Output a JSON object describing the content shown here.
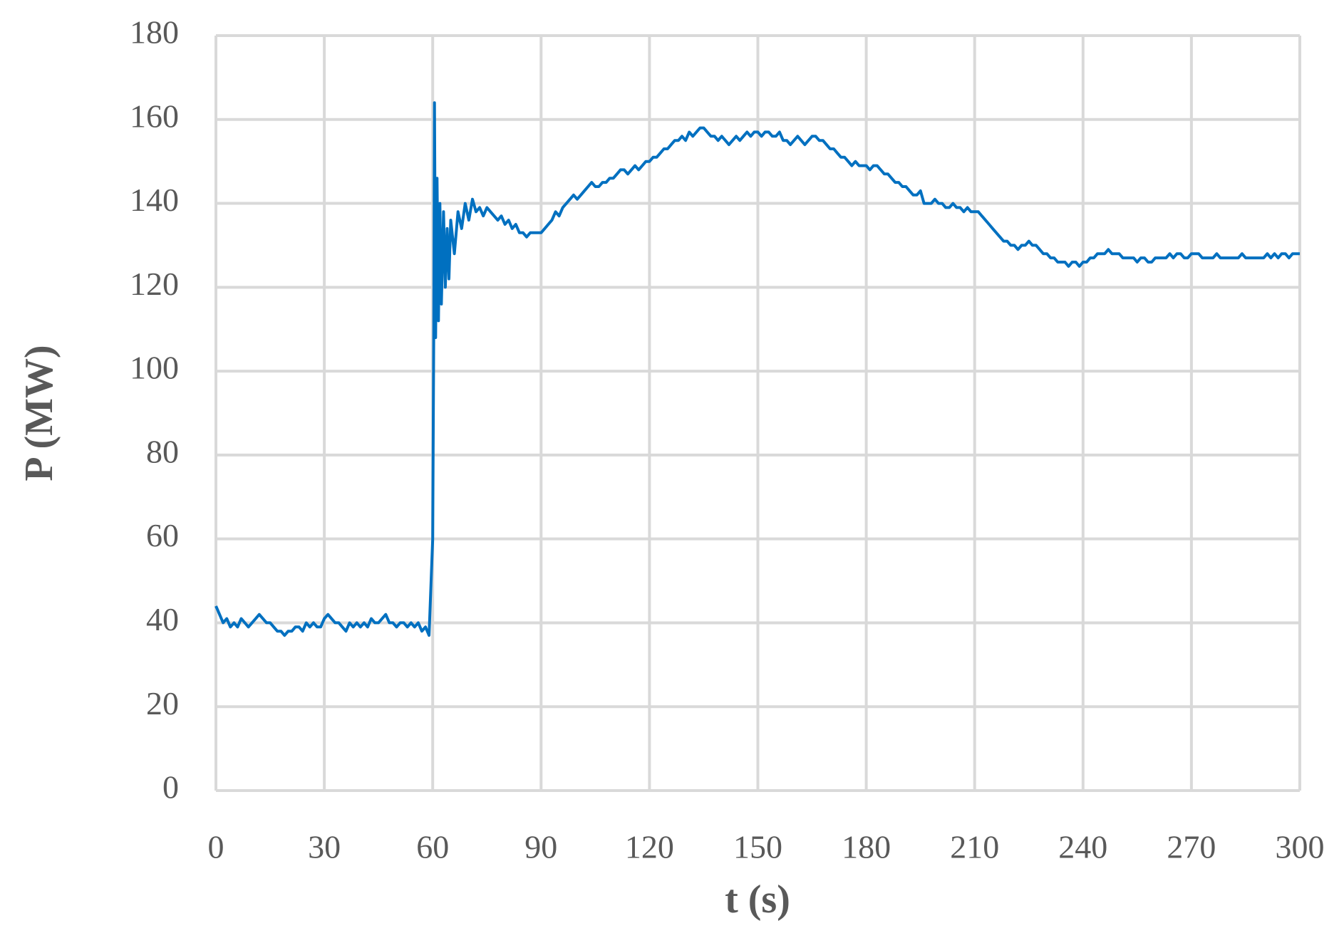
{
  "chart_data": {
    "type": "line",
    "x_label": "t (s)",
    "y_label": "P (MW)",
    "color": "#0070c0",
    "grid": true,
    "xlim": [
      0,
      300
    ],
    "xticks": [
      0,
      30,
      60,
      90,
      120,
      150,
      180,
      210,
      240,
      270,
      300
    ],
    "ylim": [
      0,
      180
    ],
    "yticks": [
      0,
      20,
      40,
      60,
      80,
      100,
      120,
      140,
      160,
      180
    ],
    "x": [
      0,
      1,
      2,
      3,
      4,
      5,
      6,
      7,
      8,
      9,
      10,
      11,
      12,
      13,
      14,
      15,
      16,
      17,
      18,
      19,
      20,
      21,
      22,
      23,
      24,
      25,
      26,
      27,
      28,
      29,
      30,
      31,
      32,
      33,
      34,
      35,
      36,
      37,
      38,
      39,
      40,
      41,
      42,
      43,
      44,
      45,
      46,
      47,
      48,
      49,
      50,
      51,
      52,
      53,
      54,
      55,
      56,
      57,
      58,
      59,
      60,
      60.3,
      60.5,
      60.8,
      61.2,
      61.6,
      62,
      62.4,
      63,
      63.5,
      64,
      64.5,
      65,
      66,
      67,
      68,
      69,
      70,
      71,
      72,
      73,
      74,
      75,
      76,
      77,
      78,
      79,
      80,
      81,
      82,
      83,
      84,
      85,
      86,
      87,
      88,
      89,
      90,
      91,
      92,
      93,
      94,
      95,
      96,
      97,
      98,
      99,
      100,
      101,
      102,
      103,
      104,
      105,
      106,
      107,
      108,
      109,
      110,
      111,
      112,
      113,
      114,
      115,
      116,
      117,
      118,
      119,
      120,
      121,
      122,
      123,
      124,
      125,
      126,
      127,
      128,
      129,
      130,
      131,
      132,
      133,
      134,
      135,
      136,
      137,
      138,
      139,
      140,
      141,
      142,
      143,
      144,
      145,
      146,
      147,
      148,
      149,
      150,
      151,
      152,
      153,
      154,
      155,
      156,
      157,
      158,
      159,
      160,
      161,
      162,
      163,
      164,
      165,
      166,
      167,
      168,
      169,
      170,
      171,
      172,
      173,
      174,
      175,
      176,
      177,
      178,
      179,
      180,
      181,
      182,
      183,
      184,
      185,
      186,
      187,
      188,
      189,
      190,
      191,
      192,
      193,
      194,
      195,
      196,
      197,
      198,
      199,
      200,
      201,
      202,
      203,
      204,
      205,
      206,
      207,
      208,
      209,
      210,
      211,
      212,
      213,
      214,
      215,
      216,
      217,
      218,
      219,
      220,
      221,
      222,
      223,
      224,
      225,
      226,
      227,
      228,
      229,
      230,
      231,
      232,
      233,
      234,
      235,
      236,
      237,
      238,
      239,
      240,
      241,
      242,
      243,
      244,
      245,
      246,
      247,
      248,
      249,
      250,
      251,
      252,
      253,
      254,
      255,
      256,
      257,
      258,
      259,
      260,
      261,
      262,
      263,
      264,
      265,
      266,
      267,
      268,
      269,
      270,
      271,
      272,
      273,
      274,
      275,
      276,
      277,
      278,
      279,
      280,
      281,
      282,
      283,
      284,
      285,
      286,
      287,
      288,
      289,
      290,
      291,
      292,
      293,
      294,
      295,
      296,
      297,
      298,
      299,
      300
    ],
    "values": [
      44,
      42,
      40,
      41,
      39,
      40,
      39,
      41,
      40,
      39,
      40,
      41,
      42,
      41,
      40,
      40,
      39,
      38,
      38,
      37,
      38,
      38,
      39,
      39,
      38,
      40,
      39,
      40,
      39,
      39,
      41,
      42,
      41,
      40,
      40,
      39,
      38,
      40,
      39,
      40,
      39,
      40,
      39,
      41,
      40,
      40,
      41,
      42,
      40,
      40,
      39,
      40,
      40,
      39,
      40,
      39,
      40,
      38,
      39,
      37,
      60,
      110,
      164,
      108,
      146,
      112,
      140,
      116,
      138,
      120,
      134,
      122,
      136,
      128,
      138,
      134,
      140,
      136,
      141,
      138,
      139,
      137,
      139,
      138,
      137,
      136,
      137,
      135,
      136,
      134,
      135,
      133,
      133,
      132,
      133,
      133,
      133,
      133,
      134,
      135,
      136,
      138,
      137,
      139,
      140,
      141,
      142,
      141,
      142,
      143,
      144,
      145,
      144,
      144,
      145,
      145,
      146,
      146,
      147,
      148,
      148,
      147,
      148,
      149,
      148,
      149,
      150,
      150,
      151,
      151,
      152,
      153,
      153,
      154,
      155,
      155,
      156,
      155,
      157,
      156,
      157,
      158,
      158,
      157,
      156,
      156,
      155,
      156,
      155,
      154,
      155,
      156,
      155,
      156,
      157,
      156,
      157,
      157,
      156,
      157,
      157,
      156,
      156,
      157,
      155,
      155,
      154,
      155,
      156,
      155,
      154,
      155,
      156,
      156,
      155,
      155,
      154,
      153,
      153,
      152,
      151,
      151,
      150,
      149,
      150,
      149,
      149,
      149,
      148,
      149,
      149,
      148,
      147,
      147,
      146,
      145,
      145,
      144,
      144,
      143,
      142,
      142,
      143,
      140,
      140,
      140,
      141,
      140,
      140,
      139,
      139,
      140,
      139,
      139,
      138,
      139,
      138,
      138,
      138,
      137,
      136,
      135,
      134,
      133,
      132,
      131,
      131,
      130,
      130,
      129,
      130,
      130,
      131,
      130,
      130,
      129,
      128,
      128,
      127,
      127,
      126,
      126,
      126,
      125,
      126,
      126,
      125,
      126,
      126,
      127,
      127,
      128,
      128,
      128,
      129,
      128,
      128,
      128,
      127,
      127,
      127,
      127,
      126,
      127,
      127,
      126,
      126,
      127,
      127,
      127,
      127,
      128,
      127,
      128,
      128,
      127,
      127,
      128,
      128,
      128,
      127,
      127,
      127,
      127,
      128,
      127,
      127,
      127,
      127,
      127,
      127,
      128,
      127,
      127,
      127,
      127,
      127,
      127,
      128,
      127,
      128,
      127,
      128,
      128,
      127,
      128,
      128,
      128
    ]
  }
}
